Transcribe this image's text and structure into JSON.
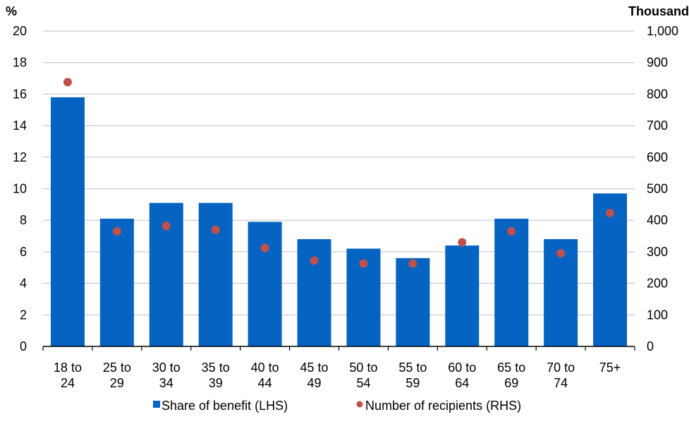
{
  "chart_data": {
    "type": "bar",
    "left_axis_unit": "%",
    "right_axis_unit": "Thousand",
    "categories": [
      [
        "18 to",
        "24"
      ],
      [
        "25 to",
        "29"
      ],
      [
        "30 to",
        "34"
      ],
      [
        "35 to",
        "39"
      ],
      [
        "40 to",
        "44"
      ],
      [
        "45 to",
        "49"
      ],
      [
        "50 to",
        "54"
      ],
      [
        "55 to",
        "59"
      ],
      [
        "60 to",
        "64"
      ],
      [
        "65 to",
        "69"
      ],
      [
        "70 to",
        "74"
      ],
      [
        "75+"
      ]
    ],
    "left_axis": {
      "min": 0,
      "max": 20,
      "ticks": [
        "0",
        "2",
        "4",
        "6",
        "8",
        "10",
        "12",
        "14",
        "16",
        "18",
        "20"
      ]
    },
    "right_axis": {
      "min": 0,
      "max": 1000,
      "ticks": [
        "0",
        "100",
        "200",
        "300",
        "400",
        "500",
        "600",
        "700",
        "800",
        "900",
        "1,000"
      ]
    },
    "grid": true,
    "legend_position": "bottom",
    "series": [
      {
        "name": "Share of benefit (LHS)",
        "type": "bar",
        "axis": "left",
        "color": "#0563C1",
        "values": [
          15.8,
          8.1,
          9.1,
          9.1,
          7.9,
          6.8,
          6.2,
          5.6,
          6.4,
          8.1,
          6.8,
          9.7
        ]
      },
      {
        "name": "Number of recipients (RHS)",
        "type": "scatter",
        "axis": "right",
        "color": "#C0504D",
        "values": [
          838,
          365,
          382,
          370,
          312,
          272,
          263,
          263,
          330,
          365,
          295,
          423
        ]
      }
    ]
  }
}
